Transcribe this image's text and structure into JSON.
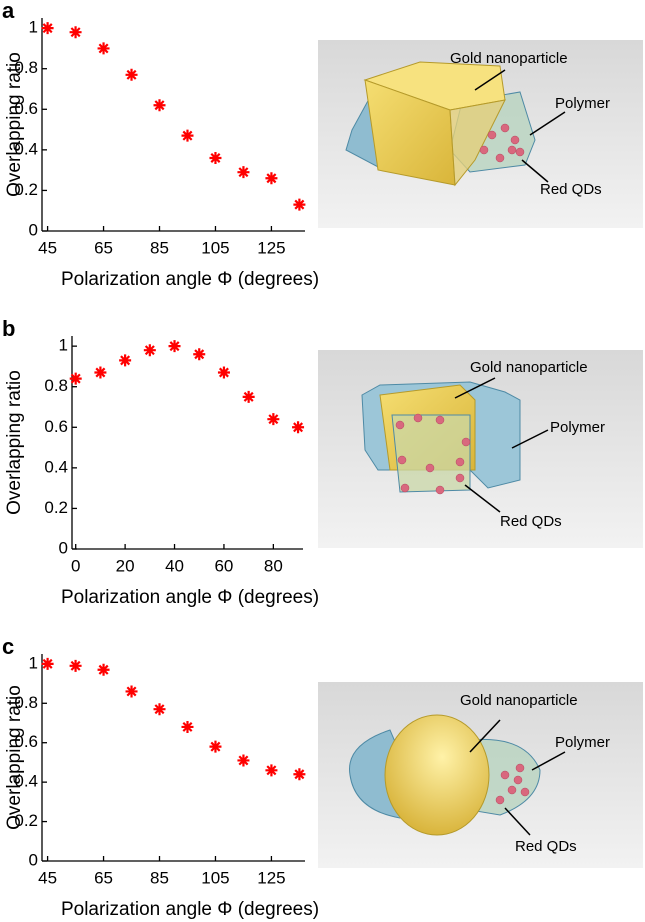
{
  "chart_data": [
    {
      "type": "scatter",
      "panel": "a",
      "ylabel": "Overlapping ratio",
      "xlabel": "Polarization angle Φ (degrees)",
      "color": "#ff0000",
      "x": [
        45,
        55,
        65,
        75,
        85,
        95,
        105,
        115,
        125,
        135
      ],
      "values": [
        1,
        0.98,
        0.9,
        0.77,
        0.62,
        0.47,
        0.36,
        0.29,
        0.26,
        0.13
      ],
      "xlim": [
        43,
        137
      ],
      "ylim": [
        0,
        1.05
      ],
      "xticks": [
        45,
        65,
        85,
        105,
        125
      ],
      "yticks": [
        0,
        0.2,
        0.4,
        0.6,
        0.8,
        1
      ],
      "annotations": [
        "Gold nanoparticle",
        "Polymer",
        "Red QDs"
      ]
    },
    {
      "type": "scatter",
      "panel": "b",
      "ylabel": "Overlapping ratio",
      "xlabel": "Polarization angle Φ (degrees)",
      "color": "#ff0000",
      "x": [
        0,
        10,
        20,
        30,
        40,
        50,
        60,
        70,
        80,
        90
      ],
      "values": [
        0.84,
        0.87,
        0.93,
        0.98,
        1,
        0.96,
        0.87,
        0.75,
        0.64,
        0.6
      ],
      "xlim": [
        -1.5,
        92
      ],
      "ylim": [
        0,
        1.05
      ],
      "xticks": [
        0,
        20,
        40,
        60,
        80
      ],
      "yticks": [
        0,
        0.2,
        0.4,
        0.6,
        0.8,
        1
      ],
      "annotations": [
        "Gold nanoparticle",
        "Polymer",
        "Red QDs"
      ]
    },
    {
      "type": "scatter",
      "panel": "c",
      "ylabel": "Overlapping ratio",
      "xlabel": "Polarization angle Φ (degrees)",
      "color": "#ff0000",
      "x": [
        45,
        55,
        65,
        75,
        85,
        95,
        105,
        115,
        125,
        135
      ],
      "values": [
        1,
        0.99,
        0.97,
        0.86,
        0.77,
        0.68,
        0.58,
        0.51,
        0.46,
        0.44
      ],
      "xlim": [
        43,
        137
      ],
      "ylim": [
        0,
        1.05
      ],
      "xticks": [
        45,
        65,
        85,
        105,
        125
      ],
      "yticks": [
        0,
        0.2,
        0.4,
        0.6,
        0.8,
        1
      ],
      "annotations": [
        "Gold nanoparticle",
        "Polymer",
        "Red QDs"
      ]
    }
  ]
}
